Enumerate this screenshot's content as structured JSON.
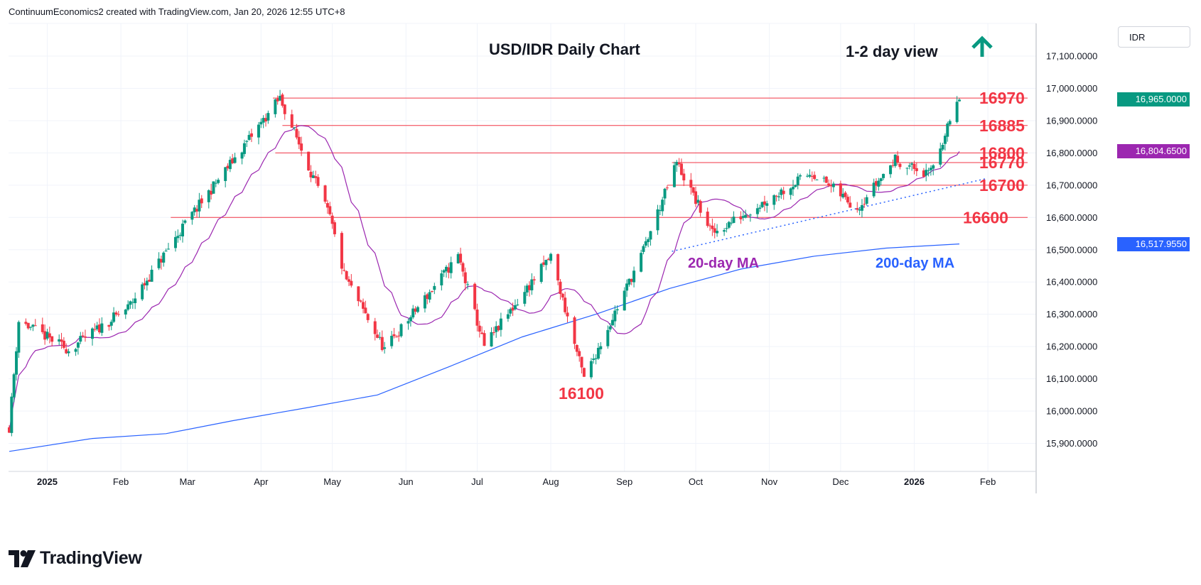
{
  "header": {
    "attribution": "ContinuumEconomics2 created with TradingView.com, Jan 20, 2026 12:55 UTC+8"
  },
  "axis": {
    "currency": "IDR",
    "y_ticks": [
      "17,100.0000",
      "17,000.0000",
      "16,900.0000",
      "16,800.0000",
      "16,700.0000",
      "16,600.0000",
      "16,500.0000",
      "16,400.0000",
      "16,300.0000",
      "16,200.0000",
      "16,100.0000",
      "16,000.0000",
      "15,900.0000"
    ],
    "x_ticks": [
      "2025",
      "Feb",
      "Mar",
      "Apr",
      "May",
      "Jun",
      "Jul",
      "Aug",
      "Sep",
      "Oct",
      "Nov",
      "Dec",
      "2026",
      "Feb"
    ]
  },
  "price_labels": {
    "last_close": "16,965.0000",
    "ma20": "16,804.6500",
    "ma200": "16,517.9550",
    "last_close_color": "#089981",
    "ma20_color": "#9c27b0",
    "ma200_color": "#2962ff"
  },
  "annotations": {
    "title": "USD/IDR Daily Chart",
    "view": "1-2 day view",
    "levels": [
      "16970",
      "16885",
      "16800",
      "16770",
      "16700",
      "16600"
    ],
    "low_label": "16100",
    "ma20_label": "20-day MA",
    "ma200_label": "200-day MA"
  },
  "logo": {
    "text": "TradingView"
  },
  "chart_data": {
    "type": "candlestick",
    "title": "USD/IDR Daily Chart",
    "subtitle": "1-2 day view",
    "ylim": [
      15840,
      17220
    ],
    "y_ticks": [
      15900,
      16000,
      16100,
      16200,
      16300,
      16400,
      16500,
      16600,
      16700,
      16800,
      16900,
      17000,
      17100
    ],
    "x_tick_labels": [
      "2025",
      "Feb",
      "Mar",
      "Apr",
      "May",
      "Jun",
      "Jul",
      "Aug",
      "Sep",
      "Oct",
      "Nov",
      "Dec",
      "2026",
      "Feb"
    ],
    "colors": {
      "up": "#089981",
      "down": "#f23645",
      "level": "#f23645",
      "ma20": "#9c27b0",
      "ma200": "#2962ff",
      "trendline": "#2962ff"
    },
    "horizontal_levels": [
      {
        "label": "16970",
        "value": 16970
      },
      {
        "label": "16885",
        "value": 16885
      },
      {
        "label": "16800",
        "value": 16800
      },
      {
        "label": "16770",
        "value": 16770
      },
      {
        "label": "16700",
        "value": 16700
      },
      {
        "label": "16600",
        "value": 16600
      }
    ],
    "key_closes": [
      {
        "date": "2024-12-16",
        "close": 15950
      },
      {
        "date": "2024-12-20",
        "close": 16280
      },
      {
        "date": "2025-01-10",
        "close": 16190
      },
      {
        "date": "2025-02-04",
        "close": 16320
      },
      {
        "date": "2025-02-28",
        "close": 16580
      },
      {
        "date": "2025-04-09",
        "close": 16970
      },
      {
        "date": "2025-04-30",
        "close": 16600
      },
      {
        "date": "2025-05-06",
        "close": 16420
      },
      {
        "date": "2025-05-23",
        "close": 16190
      },
      {
        "date": "2025-06-23",
        "close": 16480
      },
      {
        "date": "2025-07-04",
        "close": 16200
      },
      {
        "date": "2025-08-01",
        "close": 16480
      },
      {
        "date": "2025-08-15",
        "close": 16100
      },
      {
        "date": "2025-09-08",
        "close": 16480
      },
      {
        "date": "2025-09-23",
        "close": 16770
      },
      {
        "date": "2025-10-08",
        "close": 16550
      },
      {
        "date": "2025-11-19",
        "close": 16740
      },
      {
        "date": "2025-12-08",
        "close": 16630
      },
      {
        "date": "2025-12-24",
        "close": 16780
      },
      {
        "date": "2026-01-07",
        "close": 16730
      },
      {
        "date": "2026-01-20",
        "close": 16965
      }
    ],
    "last_close": 16965,
    "ma20_last": 16804.65,
    "ma200_last": 16517.955
  }
}
